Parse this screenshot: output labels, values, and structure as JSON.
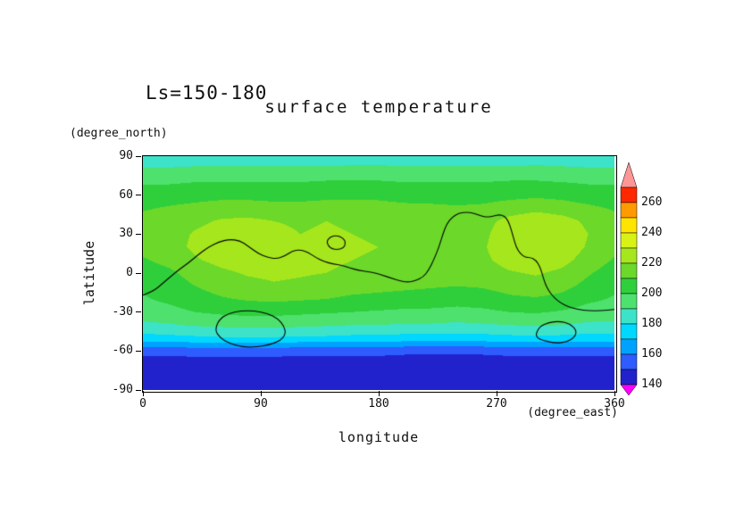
{
  "figure": {
    "title_left": "Ls=150-180",
    "title_main": "surface temperature",
    "x_axis": {
      "label": "longitude",
      "unit": "(degree_east)",
      "ticks": [
        0,
        90,
        180,
        270,
        360
      ],
      "range": [
        0,
        360
      ]
    },
    "y_axis": {
      "label": "latitude",
      "unit": "(degree_north)",
      "ticks": [
        90,
        60,
        30,
        0,
        -30,
        -60,
        -90
      ],
      "range": [
        -90,
        90
      ]
    }
  },
  "chart_data": {
    "type": "heatmap",
    "title": "surface temperature",
    "subtitle": "Ls=150-180",
    "xlabel": "longitude (degree_east)",
    "ylabel": "latitude (degree_north)",
    "xlim": [
      0,
      360
    ],
    "ylim": [
      -90,
      90
    ],
    "legend_position": "right-colorbar",
    "x": [
      0,
      20,
      40,
      60,
      80,
      100,
      120,
      140,
      160,
      180,
      200,
      220,
      240,
      260,
      280,
      300,
      320,
      340,
      360
    ],
    "y": [
      90,
      80,
      70,
      60,
      50,
      40,
      30,
      20,
      10,
      0,
      -10,
      -20,
      -30,
      -40,
      -50,
      -60,
      -70,
      -80,
      -90
    ],
    "values": [
      [
        183,
        183,
        183,
        183,
        183,
        183,
        183,
        183,
        183,
        183,
        183,
        183,
        183,
        183,
        183,
        183,
        183,
        183,
        183
      ],
      [
        191,
        191,
        192,
        192,
        192,
        192,
        192,
        192,
        193,
        193,
        192,
        192,
        192,
        192,
        192,
        193,
        192,
        191,
        191
      ],
      [
        199,
        199,
        200,
        200,
        200,
        200,
        200,
        201,
        201,
        201,
        200,
        200,
        200,
        200,
        201,
        201,
        200,
        199,
        199
      ],
      [
        204,
        205,
        206,
        207,
        207,
        206,
        206,
        207,
        208,
        208,
        207,
        206,
        206,
        206,
        207,
        208,
        207,
        205,
        204
      ],
      [
        209,
        211,
        213,
        215,
        215,
        214,
        214,
        215,
        214,
        213,
        212,
        212,
        211,
        212,
        215,
        217,
        215,
        212,
        209
      ],
      [
        213,
        215,
        218,
        221,
        222,
        220,
        219,
        220,
        219,
        218,
        216,
        215,
        214,
        217,
        223,
        227,
        224,
        218,
        213
      ],
      [
        214,
        216,
        221,
        224,
        225,
        222,
        220,
        221,
        220,
        219,
        217,
        216,
        215,
        218,
        226,
        229,
        227,
        220,
        214
      ],
      [
        213,
        216,
        222,
        225,
        226,
        223,
        221,
        222,
        221,
        220,
        218,
        217,
        216,
        219,
        227,
        229,
        226,
        219,
        213
      ],
      [
        209,
        213,
        219,
        223,
        225,
        223,
        221,
        222,
        220,
        219,
        218,
        217,
        216,
        218,
        224,
        226,
        223,
        216,
        209
      ],
      [
        205,
        208,
        214,
        218,
        221,
        222,
        221,
        220,
        218,
        217,
        216,
        215,
        214,
        215,
        219,
        221,
        218,
        211,
        205
      ],
      [
        202,
        205,
        210,
        214,
        217,
        219,
        218,
        216,
        214,
        213,
        212,
        211,
        210,
        211,
        214,
        216,
        213,
        207,
        202
      ],
      [
        199,
        202,
        206,
        209,
        211,
        212,
        211,
        210,
        208,
        207,
        206,
        205,
        204,
        205,
        208,
        209,
        207,
        202,
        199
      ],
      [
        195,
        197,
        200,
        202,
        203,
        203,
        202,
        201,
        200,
        199,
        198,
        198,
        197,
        198,
        200,
        201,
        199,
        196,
        195
      ],
      [
        188,
        189,
        191,
        192,
        193,
        193,
        192,
        191,
        190,
        190,
        189,
        189,
        188,
        189,
        190,
        191,
        190,
        188,
        188
      ],
      [
        176,
        177,
        178,
        179,
        179,
        179,
        178,
        178,
        177,
        177,
        176,
        176,
        176,
        176,
        177,
        178,
        177,
        176,
        176
      ],
      [
        153,
        153,
        154,
        154,
        154,
        154,
        153,
        153,
        153,
        153,
        152,
        152,
        152,
        152,
        153,
        153,
        153,
        153,
        153
      ],
      [
        145,
        145,
        145,
        145,
        145,
        145,
        145,
        145,
        145,
        145,
        145,
        145,
        145,
        145,
        145,
        145,
        145,
        145,
        145
      ],
      [
        143,
        143,
        143,
        143,
        143,
        143,
        143,
        143,
        143,
        143,
        143,
        143,
        143,
        143,
        143,
        143,
        143,
        143,
        143
      ],
      [
        142,
        142,
        142,
        142,
        142,
        142,
        142,
        142,
        142,
        142,
        142,
        142,
        142,
        142,
        142,
        142,
        142,
        142,
        142
      ]
    ],
    "levels": [
      140,
      150,
      160,
      170,
      180,
      190,
      200,
      210,
      220,
      230,
      240,
      250,
      260,
      270
    ],
    "band_colors": [
      "#2222cc",
      "#2e5cff",
      "#00a2ff",
      "#00d8ff",
      "#3ce3c8",
      "#4ee16e",
      "#2fcf3c",
      "#6bd82a",
      "#a5e61c",
      "#d8f216",
      "#ffe400",
      "#ff9b00",
      "#ff2800"
    ],
    "under_color": "#ff00ff",
    "over_color": "#ff9696",
    "colorbar_labels": [
      140,
      160,
      180,
      200,
      220,
      240,
      260
    ],
    "contour_color": "#000000",
    "contours": [
      {
        "id": "contour-1",
        "closed": false,
        "points": [
          [
            0,
            -17
          ],
          [
            8,
            -14
          ],
          [
            15,
            -8
          ],
          [
            22,
            -2
          ],
          [
            28,
            3
          ],
          [
            35,
            8
          ],
          [
            42,
            14
          ],
          [
            50,
            20
          ],
          [
            58,
            24
          ],
          [
            66,
            26
          ],
          [
            74,
            25
          ],
          [
            80,
            21
          ],
          [
            88,
            15
          ],
          [
            95,
            12
          ],
          [
            102,
            11
          ],
          [
            108,
            13
          ],
          [
            114,
            17
          ],
          [
            120,
            18
          ],
          [
            126,
            16
          ],
          [
            132,
            12
          ],
          [
            138,
            9
          ],
          [
            145,
            7
          ],
          [
            152,
            6
          ],
          [
            158,
            4
          ],
          [
            165,
            2
          ],
          [
            172,
            1
          ],
          [
            178,
            0
          ],
          [
            184,
            -2
          ],
          [
            190,
            -4
          ],
          [
            196,
            -6
          ],
          [
            202,
            -7
          ],
          [
            208,
            -6
          ],
          [
            214,
            -3
          ],
          [
            218,
            2
          ],
          [
            222,
            10
          ],
          [
            226,
            20
          ],
          [
            229,
            30
          ],
          [
            232,
            38
          ],
          [
            236,
            43
          ],
          [
            241,
            46
          ],
          [
            247,
            47
          ],
          [
            253,
            46
          ],
          [
            258,
            44
          ],
          [
            263,
            43
          ],
          [
            268,
            44
          ],
          [
            272,
            45
          ],
          [
            276,
            44
          ],
          [
            279,
            40
          ],
          [
            281,
            34
          ],
          [
            283,
            27
          ],
          [
            285,
            20
          ],
          [
            288,
            15
          ],
          [
            292,
            12
          ],
          [
            296,
            12
          ],
          [
            300,
            10
          ],
          [
            303,
            5
          ],
          [
            305,
            -1
          ],
          [
            307,
            -8
          ],
          [
            310,
            -14
          ],
          [
            314,
            -19
          ],
          [
            319,
            -23
          ],
          [
            325,
            -26
          ],
          [
            332,
            -28
          ],
          [
            340,
            -29
          ],
          [
            350,
            -29
          ],
          [
            360,
            -28
          ]
        ]
      },
      {
        "id": "contour-2",
        "closed": true,
        "points": [
          [
            140,
            24
          ],
          [
            143,
            28
          ],
          [
            148,
            29
          ],
          [
            153,
            27
          ],
          [
            155,
            23
          ],
          [
            153,
            19
          ],
          [
            148,
            18
          ],
          [
            143,
            19
          ]
        ]
      },
      {
        "id": "contour-3",
        "closed": true,
        "points": [
          [
            55,
            -44
          ],
          [
            58,
            -36
          ],
          [
            65,
            -31
          ],
          [
            75,
            -29
          ],
          [
            85,
            -29
          ],
          [
            95,
            -31
          ],
          [
            103,
            -35
          ],
          [
            108,
            -41
          ],
          [
            109,
            -47
          ],
          [
            105,
            -52
          ],
          [
            97,
            -55
          ],
          [
            87,
            -57
          ],
          [
            76,
            -57
          ],
          [
            66,
            -54
          ],
          [
            59,
            -50
          ]
        ]
      },
      {
        "id": "contour-4",
        "closed": true,
        "points": [
          [
            300,
            -47
          ],
          [
            303,
            -41
          ],
          [
            310,
            -38
          ],
          [
            318,
            -37
          ],
          [
            326,
            -39
          ],
          [
            331,
            -44
          ],
          [
            330,
            -49
          ],
          [
            324,
            -53
          ],
          [
            315,
            -54
          ],
          [
            306,
            -52
          ],
          [
            301,
            -50
          ]
        ]
      }
    ]
  }
}
